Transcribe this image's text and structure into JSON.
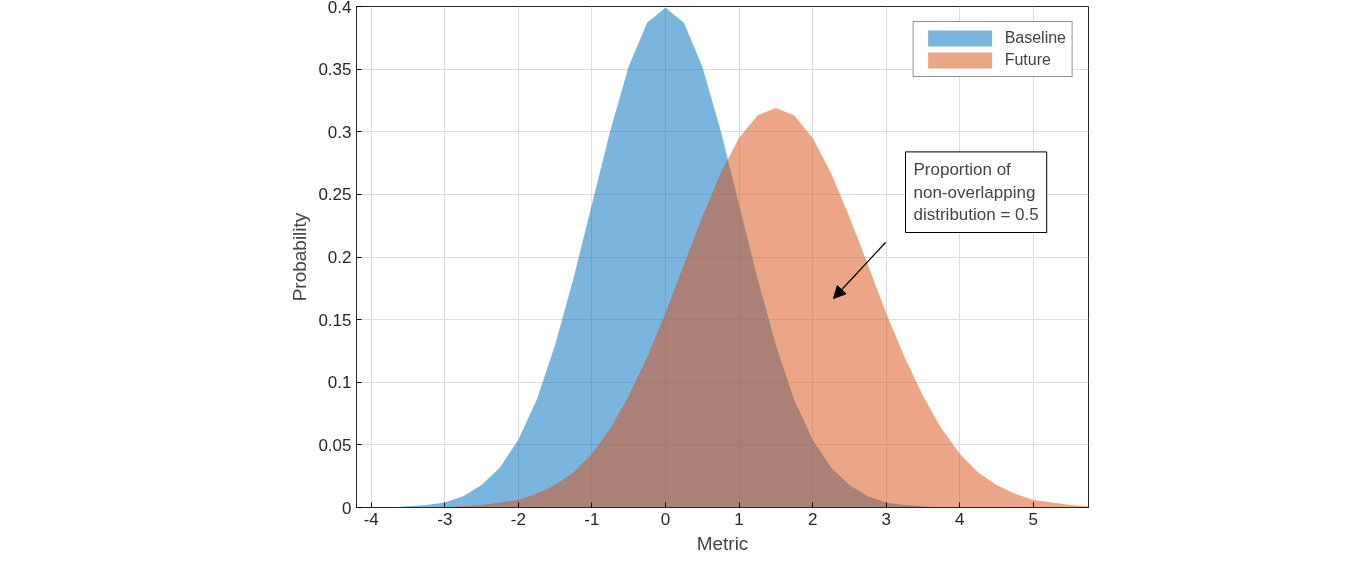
{
  "chart_data": {
    "type": "area",
    "xlabel": "Metric",
    "ylabel": "Probability",
    "x": [
      -4,
      -3.75,
      -3.5,
      -3.25,
      -3,
      -2.75,
      -2.5,
      -2.25,
      -2,
      -1.75,
      -1.5,
      -1.25,
      -1,
      -0.75,
      -0.5,
      -0.25,
      0,
      0.25,
      0.5,
      0.75,
      1,
      1.25,
      1.5,
      1.75,
      2,
      2.25,
      2.5,
      2.75,
      3,
      3.25,
      3.5,
      3.75,
      4,
      4.25,
      4.5,
      4.75,
      5,
      5.25,
      5.5,
      5.75
    ],
    "series": [
      {
        "name": "Baseline",
        "color": "#0072bd",
        "values": [
          0,
          0,
          0.001,
          0.002,
          0.004,
          0.009,
          0.018,
          0.032,
          0.054,
          0.086,
          0.13,
          0.183,
          0.242,
          0.301,
          0.352,
          0.387,
          0.399,
          0.387,
          0.352,
          0.301,
          0.242,
          0.183,
          0.13,
          0.086,
          0.054,
          0.032,
          0.018,
          0.009,
          0.004,
          0.002,
          0.001,
          0,
          0,
          0,
          0,
          0,
          0,
          0,
          0,
          0
        ]
      },
      {
        "name": "Future",
        "color": "#d95319",
        "values": [
          0,
          0,
          0,
          0,
          0,
          0.001,
          0.002,
          0.004,
          0.006,
          0.011,
          0.018,
          0.028,
          0.043,
          0.063,
          0.089,
          0.12,
          0.155,
          0.194,
          0.232,
          0.267,
          0.295,
          0.313,
          0.319,
          0.313,
          0.295,
          0.267,
          0.232,
          0.194,
          0.155,
          0.12,
          0.089,
          0.063,
          0.043,
          0.028,
          0.018,
          0.011,
          0.006,
          0.004,
          0.002,
          0.001
        ]
      }
    ],
    "xlim": [
      -4.2,
      5.75
    ],
    "ylim": [
      0,
      0.4
    ],
    "xticks": [
      -4,
      -3,
      -2,
      -1,
      0,
      1,
      2,
      3,
      4,
      5
    ],
    "yticks": [
      0,
      0.05,
      0.1,
      0.15,
      0.2,
      0.25,
      0.3,
      0.35,
      0.4
    ],
    "grid": true,
    "legend": "top right",
    "annotations": [
      "Proportion of\nnon-overlapping\ndistribution = 0.5"
    ]
  }
}
